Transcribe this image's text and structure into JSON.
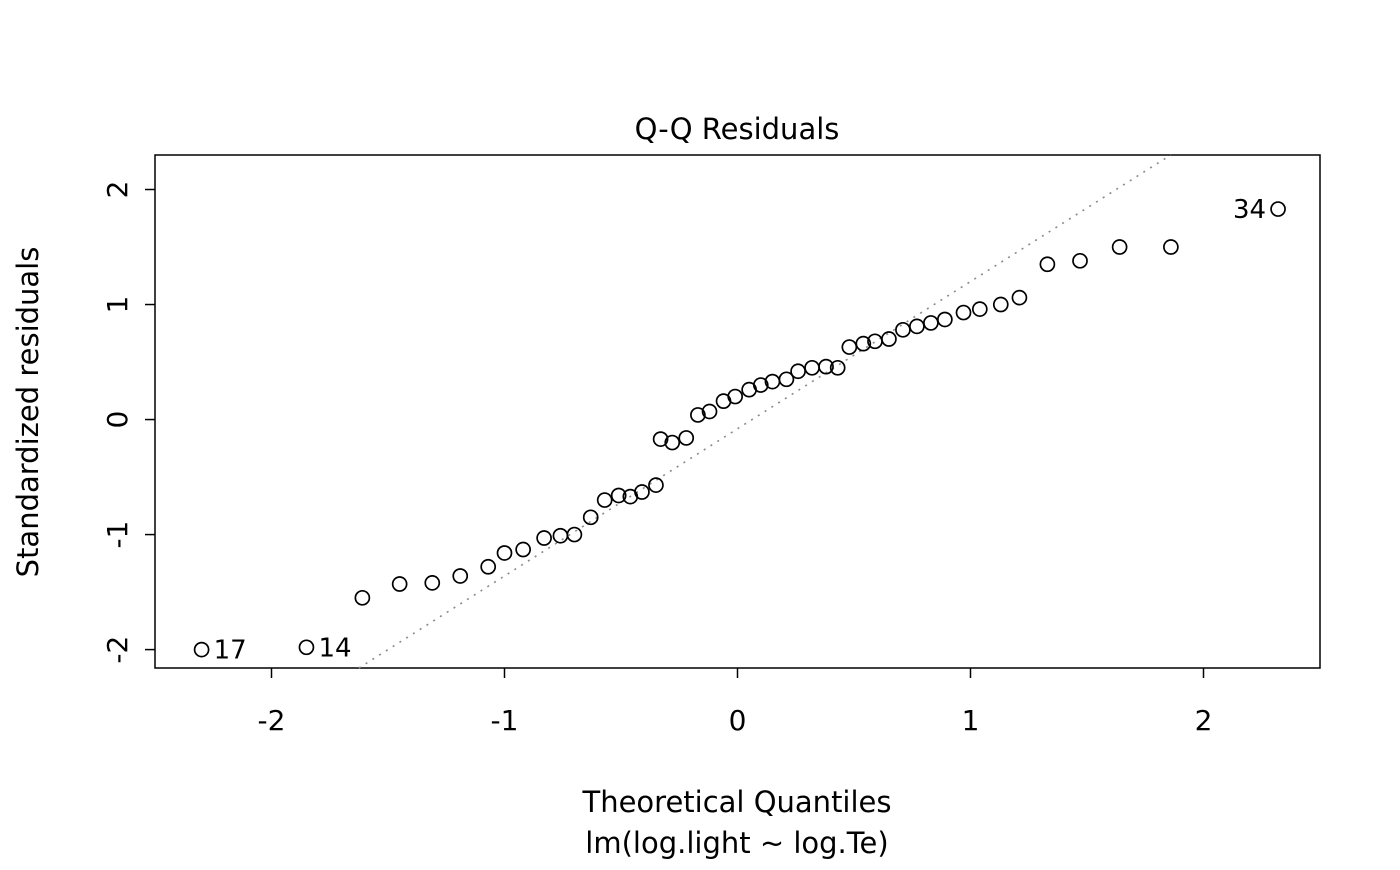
{
  "chart_data": {
    "type": "scatter",
    "title": "Q-Q Residuals",
    "xlabel": "Theoretical Quantiles",
    "sublabel": "lm(log.light ~ log.Te)",
    "ylabel": "Standardized residuals",
    "xlim": [
      -2.5,
      2.5
    ],
    "ylim": [
      -2.16,
      2.3
    ],
    "x_ticks": [
      -2,
      -1,
      0,
      1,
      2
    ],
    "y_ticks": [
      -2,
      -1,
      0,
      1,
      2
    ],
    "grid": false,
    "legend": false,
    "point_style": {
      "shape": "open-circle",
      "color": "#000000",
      "radius": 7
    },
    "reference_line": {
      "intercept": -0.08,
      "slope": 1.28,
      "style": "dotted",
      "color": "#8a8a8a"
    },
    "points": [
      [
        -2.3,
        -2.0
      ],
      [
        -1.85,
        -1.98
      ],
      [
        -1.61,
        -1.55
      ],
      [
        -1.45,
        -1.43
      ],
      [
        -1.31,
        -1.42
      ],
      [
        -1.19,
        -1.36
      ],
      [
        -1.07,
        -1.28
      ],
      [
        -1.0,
        -1.16
      ],
      [
        -0.92,
        -1.13
      ],
      [
        -0.83,
        -1.03
      ],
      [
        -0.76,
        -1.01
      ],
      [
        -0.7,
        -1.0
      ],
      [
        -0.63,
        -0.85
      ],
      [
        -0.57,
        -0.7
      ],
      [
        -0.51,
        -0.66
      ],
      [
        -0.46,
        -0.67
      ],
      [
        -0.41,
        -0.63
      ],
      [
        -0.35,
        -0.57
      ],
      [
        -0.33,
        -0.17
      ],
      [
        -0.28,
        -0.2
      ],
      [
        -0.22,
        -0.16
      ],
      [
        -0.17,
        0.04
      ],
      [
        -0.12,
        0.07
      ],
      [
        -0.06,
        0.16
      ],
      [
        -0.01,
        0.2
      ],
      [
        0.05,
        0.26
      ],
      [
        0.1,
        0.3
      ],
      [
        0.15,
        0.33
      ],
      [
        0.21,
        0.35
      ],
      [
        0.26,
        0.42
      ],
      [
        0.32,
        0.45
      ],
      [
        0.38,
        0.46
      ],
      [
        0.43,
        0.45
      ],
      [
        0.48,
        0.63
      ],
      [
        0.54,
        0.66
      ],
      [
        0.59,
        0.68
      ],
      [
        0.65,
        0.7
      ],
      [
        0.71,
        0.78
      ],
      [
        0.77,
        0.81
      ],
      [
        0.83,
        0.84
      ],
      [
        0.89,
        0.87
      ],
      [
        0.97,
        0.93
      ],
      [
        1.04,
        0.96
      ],
      [
        1.13,
        1.0
      ],
      [
        1.21,
        1.06
      ],
      [
        1.33,
        1.35
      ],
      [
        1.47,
        1.38
      ],
      [
        1.64,
        1.5
      ],
      [
        1.86,
        1.5
      ],
      [
        2.32,
        1.83
      ]
    ],
    "labeled_points": [
      {
        "label": "17",
        "x": -2.3,
        "y": -2.0,
        "side": "right"
      },
      {
        "label": "14",
        "x": -1.85,
        "y": -1.98,
        "side": "right"
      },
      {
        "label": "34",
        "x": 2.32,
        "y": 1.83,
        "side": "left"
      }
    ]
  }
}
